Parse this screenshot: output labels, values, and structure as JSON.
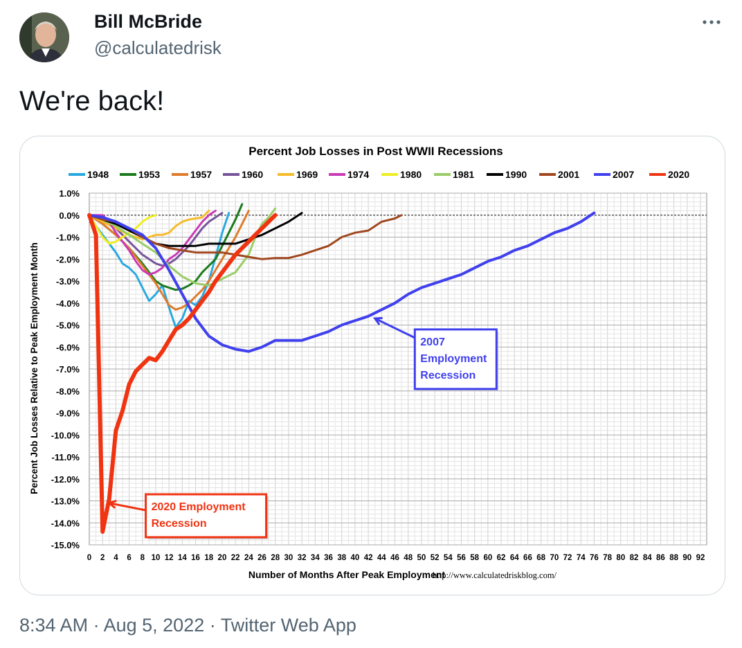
{
  "tweet": {
    "author_name": "Bill McBride",
    "author_handle": "@calculatedrisk",
    "text": "We're back!",
    "time": "8:34 AM",
    "separator": "·",
    "date": "Aug 5, 2022",
    "client": "Twitter Web App"
  },
  "icons": {
    "more": "more-dots-icon",
    "avatar": "avatar-photo"
  },
  "chart_data": {
    "type": "line",
    "title": "Percent Job Losses in Post WWII Recessions",
    "xlabel": "Number of Months After Peak Employment",
    "ylabel": "Percent Job Losses Relative to Peak Employment Month",
    "source": "http://www.calculatedriskblog.com/",
    "xlim": [
      0,
      93
    ],
    "ylim": [
      -15,
      1
    ],
    "x_ticks": [
      0,
      2,
      4,
      6,
      8,
      10,
      12,
      14,
      16,
      18,
      20,
      22,
      24,
      26,
      28,
      30,
      32,
      34,
      36,
      38,
      40,
      42,
      44,
      46,
      48,
      50,
      52,
      54,
      56,
      58,
      60,
      62,
      64,
      66,
      68,
      70,
      72,
      74,
      76,
      78,
      80,
      82,
      84,
      86,
      88,
      90,
      92
    ],
    "y_ticks": [
      1,
      0,
      -1,
      -2,
      -3,
      -4,
      -5,
      -6,
      -7,
      -8,
      -9,
      -10,
      -11,
      -12,
      -13,
      -14,
      -15
    ],
    "y_tick_labels": [
      "1.0%",
      "0.0%",
      "-1.0%",
      "-2.0%",
      "-3.0%",
      "-4.0%",
      "-5.0%",
      "-6.0%",
      "-7.0%",
      "-8.0%",
      "-9.0%",
      "-10.0%",
      "-11.0%",
      "-12.0%",
      "-13.0%",
      "-14.0%",
      "-15.0%"
    ],
    "grid": true,
    "legend_position": "top",
    "series": [
      {
        "name": "1948",
        "color": "#29a8e0",
        "width": 3,
        "x": [
          0,
          1,
          2,
          3,
          4,
          5,
          6,
          7,
          8,
          9,
          10,
          11,
          12,
          13,
          14,
          15,
          16,
          17,
          18,
          19,
          20,
          21
        ],
        "y": [
          0,
          -0.5,
          -0.9,
          -1.3,
          -1.7,
          -2.2,
          -2.4,
          -2.7,
          -3.3,
          -3.9,
          -3.6,
          -3.2,
          -4.2,
          -5.1,
          -4.7,
          -3.9,
          -4.1,
          -3.7,
          -3.0,
          -1.9,
          -0.8,
          0.1
        ]
      },
      {
        "name": "1953",
        "color": "#1c7a1c",
        "width": 3,
        "x": [
          0,
          2,
          4,
          6,
          8,
          10,
          11,
          12,
          13,
          14,
          15,
          16,
          17,
          18,
          19,
          20,
          21,
          22,
          23
        ],
        "y": [
          0,
          -0.4,
          -0.9,
          -1.5,
          -2.2,
          -3.0,
          -3.2,
          -3.3,
          -3.4,
          -3.35,
          -3.2,
          -3.0,
          -2.6,
          -2.3,
          -2.0,
          -1.4,
          -0.8,
          -0.2,
          0.5
        ]
      },
      {
        "name": "1957",
        "color": "#e07b2a",
        "width": 3,
        "x": [
          0,
          2,
          4,
          6,
          8,
          10,
          11,
          12,
          13,
          14,
          15,
          16,
          17,
          18,
          19,
          20,
          21,
          22,
          23,
          24
        ],
        "y": [
          0,
          -0.4,
          -0.9,
          -1.5,
          -2.3,
          -3.1,
          -3.6,
          -4.1,
          -4.3,
          -4.2,
          -4.0,
          -3.7,
          -3.4,
          -3.0,
          -2.5,
          -2.0,
          -1.5,
          -1.0,
          -0.4,
          0.2
        ]
      },
      {
        "name": "1960",
        "color": "#76559a",
        "width": 3,
        "x": [
          0,
          2,
          4,
          6,
          8,
          10,
          11,
          12,
          13,
          14,
          15,
          16,
          17,
          18,
          19,
          20
        ],
        "y": [
          0,
          -0.3,
          -0.6,
          -1.2,
          -1.8,
          -2.2,
          -2.3,
          -2.2,
          -2.0,
          -1.7,
          -1.4,
          -1.0,
          -0.6,
          -0.3,
          -0.1,
          0.1
        ]
      },
      {
        "name": "1969",
        "color": "#f6bb2a",
        "width": 3,
        "x": [
          0,
          2,
          4,
          6,
          8,
          9,
          10,
          11,
          12,
          13,
          14,
          15,
          16,
          17,
          18
        ],
        "y": [
          0,
          -0.3,
          -0.6,
          -0.9,
          -1.1,
          -1.0,
          -0.9,
          -0.9,
          -0.8,
          -0.5,
          -0.3,
          -0.2,
          -0.15,
          -0.1,
          0.2
        ]
      },
      {
        "name": "1974",
        "color": "#c93ab5",
        "width": 3,
        "x": [
          0,
          1,
          2,
          3,
          4,
          5,
          6,
          7,
          8,
          9,
          10,
          11,
          12,
          13,
          14,
          15,
          16,
          17,
          18,
          19
        ],
        "y": [
          0,
          0,
          0,
          -0.3,
          -0.8,
          -1.2,
          -1.6,
          -2.1,
          -2.5,
          -2.7,
          -2.6,
          -2.4,
          -2.0,
          -1.8,
          -1.5,
          -1.1,
          -0.7,
          -0.3,
          0.0,
          0.2
        ]
      },
      {
        "name": "1980",
        "color": "#eeee22",
        "width": 3,
        "x": [
          0,
          1,
          2,
          3,
          4,
          5,
          6,
          7,
          8,
          9,
          10
        ],
        "y": [
          0,
          -0.5,
          -1.0,
          -1.3,
          -1.2,
          -1.0,
          -0.8,
          -0.6,
          -0.3,
          -0.1,
          0
        ]
      },
      {
        "name": "1981",
        "color": "#99cc66",
        "width": 3,
        "x": [
          0,
          2,
          4,
          6,
          8,
          10,
          12,
          14,
          16,
          18,
          20,
          22,
          24,
          25,
          26,
          27,
          28
        ],
        "y": [
          0,
          -0.2,
          -0.5,
          -0.9,
          -1.3,
          -1.7,
          -2.3,
          -2.8,
          -3.1,
          -3.2,
          -2.9,
          -2.6,
          -1.8,
          -1.0,
          -0.4,
          -0.1,
          0.3
        ]
      },
      {
        "name": "1990",
        "color": "#000000",
        "width": 3,
        "x": [
          0,
          2,
          4,
          6,
          8,
          10,
          12,
          14,
          16,
          18,
          20,
          22,
          24,
          26,
          28,
          30,
          32
        ],
        "y": [
          0,
          -0.2,
          -0.4,
          -0.7,
          -1.0,
          -1.3,
          -1.4,
          -1.4,
          -1.4,
          -1.3,
          -1.3,
          -1.3,
          -1.1,
          -0.9,
          -0.6,
          -0.3,
          0.1
        ]
      },
      {
        "name": "2001",
        "color": "#a0471e",
        "width": 3,
        "x": [
          0,
          2,
          4,
          6,
          8,
          10,
          12,
          14,
          16,
          18,
          20,
          22,
          24,
          26,
          28,
          30,
          32,
          34,
          36,
          38,
          40,
          42,
          44,
          46,
          47
        ],
        "y": [
          0,
          -0.2,
          -0.3,
          -0.6,
          -1.0,
          -1.3,
          -1.5,
          -1.6,
          -1.7,
          -1.7,
          -1.7,
          -1.8,
          -1.9,
          -2.0,
          -1.95,
          -1.95,
          -1.8,
          -1.6,
          -1.4,
          -1.0,
          -0.8,
          -0.7,
          -0.3,
          -0.15,
          0
        ]
      },
      {
        "name": "2007",
        "color": "#4040ee",
        "width": 4,
        "x": [
          0,
          2,
          4,
          6,
          8,
          10,
          12,
          14,
          16,
          18,
          20,
          22,
          24,
          26,
          28,
          30,
          32,
          34,
          36,
          38,
          40,
          42,
          44,
          46,
          48,
          50,
          52,
          54,
          56,
          58,
          60,
          62,
          64,
          66,
          68,
          70,
          72,
          74,
          76
        ],
        "y": [
          0,
          -0.1,
          -0.3,
          -0.6,
          -0.9,
          -1.5,
          -2.5,
          -3.6,
          -4.7,
          -5.5,
          -5.9,
          -6.1,
          -6.2,
          -6.0,
          -5.7,
          -5.7,
          -5.7,
          -5.5,
          -5.3,
          -5.0,
          -4.8,
          -4.6,
          -4.3,
          -4.0,
          -3.6,
          -3.3,
          -3.1,
          -2.9,
          -2.7,
          -2.4,
          -2.1,
          -1.9,
          -1.6,
          -1.4,
          -1.1,
          -0.8,
          -0.6,
          -0.3,
          0.1
        ]
      },
      {
        "name": "2020",
        "color": "#f03311",
        "width": 6,
        "x": [
          0,
          1,
          2,
          3,
          4,
          5,
          6,
          7,
          8,
          9,
          10,
          11,
          12,
          13,
          14,
          15,
          16,
          17,
          18,
          19,
          20,
          21,
          22,
          23,
          24,
          25,
          26,
          27,
          28
        ],
        "y": [
          0,
          -0.9,
          -14.4,
          -12.9,
          -9.8,
          -8.9,
          -7.7,
          -7.1,
          -6.8,
          -6.5,
          -6.6,
          -6.2,
          -5.7,
          -5.2,
          -5.0,
          -4.7,
          -4.3,
          -3.9,
          -3.5,
          -3.0,
          -2.6,
          -2.2,
          -1.8,
          -1.5,
          -1.2,
          -0.9,
          -0.6,
          -0.3,
          0
        ]
      }
    ],
    "annotations": [
      {
        "name": "annotation-2007",
        "lines": [
          "2007",
          "Employment",
          "Recession"
        ],
        "color": "#4040ee",
        "box_x": 49,
        "box_y": -5.2,
        "arrow_to_x": 43,
        "arrow_to_y": -4.7
      },
      {
        "name": "annotation-2020",
        "lines": [
          "2020 Employment",
          "Recession"
        ],
        "color": "#f03311",
        "box_x": 8.5,
        "box_y": -12.7,
        "arrow_to_x": 3,
        "arrow_to_y": -13.1
      }
    ]
  }
}
